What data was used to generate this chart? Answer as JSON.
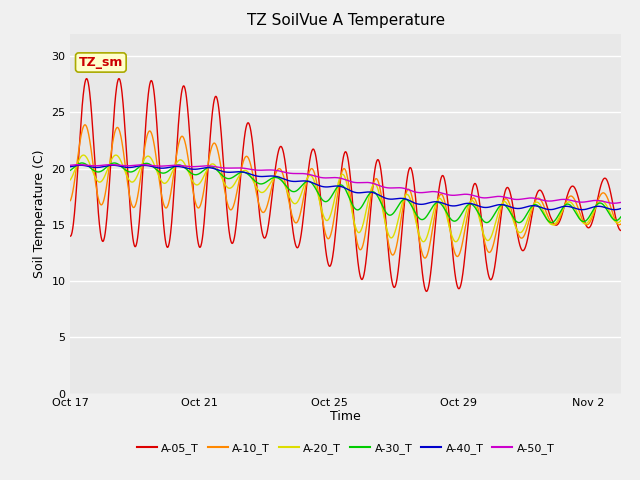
{
  "title": "TZ SoilVue A Temperature",
  "xlabel": "Time",
  "ylabel": "Soil Temperature (C)",
  "ylim": [
    0,
    32
  ],
  "yticks": [
    0,
    5,
    10,
    15,
    20,
    25,
    30
  ],
  "annotation_text": "TZ_sm",
  "annotation_box_color": "#ffffcc",
  "annotation_border_color": "#aaaa00",
  "annotation_text_color": "#cc0000",
  "fig_bg_color": "#f0f0f0",
  "plot_bg_color": "#e8e8e8",
  "grid_color": "#ffffff",
  "series": [
    {
      "label": "A-05_T",
      "color": "#dd0000",
      "linewidth": 1.0
    },
    {
      "label": "A-10_T",
      "color": "#ff8800",
      "linewidth": 1.0
    },
    {
      "label": "A-20_T",
      "color": "#dddd00",
      "linewidth": 1.0
    },
    {
      "label": "A-30_T",
      "color": "#00cc00",
      "linewidth": 1.0
    },
    {
      "label": "A-40_T",
      "color": "#0000cc",
      "linewidth": 1.0
    },
    {
      "label": "A-50_T",
      "color": "#cc00cc",
      "linewidth": 1.0
    }
  ],
  "xtick_labels": [
    "Oct 17",
    "Oct 21",
    "Oct 25",
    "Oct 29",
    "Nov 2"
  ],
  "xtick_positions": [
    0,
    4,
    8,
    12,
    16
  ],
  "xlim": [
    0,
    17
  ],
  "title_fontsize": 11,
  "axis_label_fontsize": 9,
  "tick_fontsize": 8,
  "legend_fontsize": 8
}
